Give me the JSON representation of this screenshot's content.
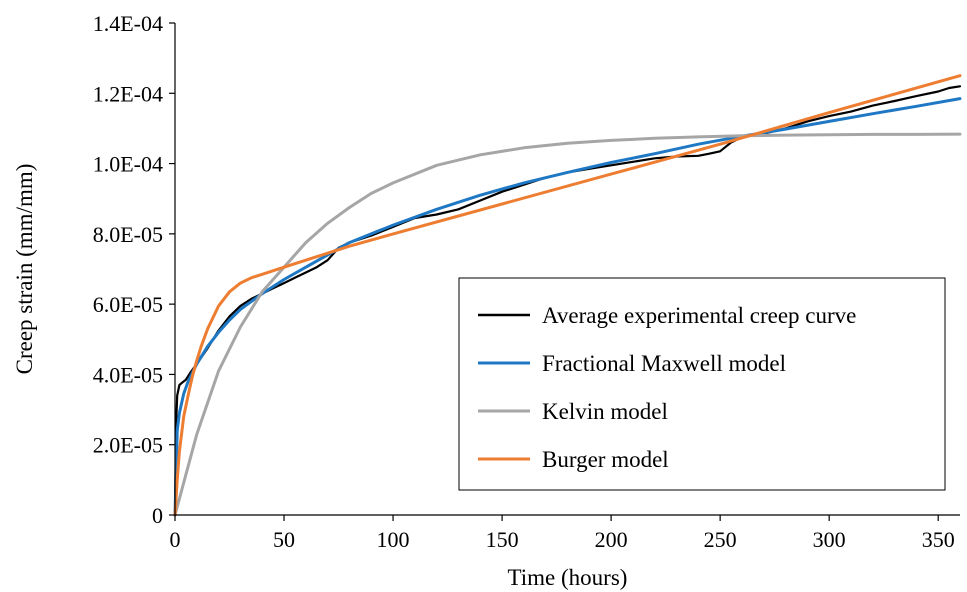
{
  "chart_data": {
    "type": "line",
    "title": "",
    "xlabel": "Time (hours)",
    "ylabel": "Creep strain (mm/mm)",
    "xlim": [
      0,
      360
    ],
    "ylim": [
      0,
      0.00014
    ],
    "x_ticks": [
      0,
      50,
      100,
      150,
      200,
      250,
      300,
      350
    ],
    "x_tick_labels": [
      "0",
      "50",
      "100",
      "150",
      "200",
      "250",
      "300",
      "350"
    ],
    "y_ticks": [
      0,
      2e-05,
      4e-05,
      6e-05,
      8e-05,
      0.0001,
      0.00012,
      0.00014
    ],
    "y_tick_labels": [
      "0",
      "2.0E-05",
      "4.0E-05",
      "6.0E-05",
      "8.0E-05",
      "1.0E-04",
      "1.2E-04",
      "1.4E-04"
    ],
    "grid": false,
    "legend_position": "bottom-right",
    "series": [
      {
        "name": "Average experimental creep curve",
        "color": "#000000",
        "x": [
          0,
          0.5,
          1,
          2,
          3,
          5,
          7,
          10,
          15,
          20,
          25,
          30,
          35,
          40,
          45,
          50,
          55,
          60,
          65,
          70,
          75,
          80,
          90,
          100,
          110,
          120,
          130,
          140,
          150,
          160,
          170,
          180,
          190,
          200,
          210,
          220,
          230,
          240,
          245,
          250,
          255,
          260,
          270,
          280,
          290,
          300,
          310,
          320,
          330,
          340,
          350,
          355,
          360
        ],
        "y": [
          0,
          2.6e-05,
          3.4e-05,
          3.7e-05,
          3.75e-05,
          3.85e-05,
          4.05e-05,
          4.3e-05,
          4.75e-05,
          5.25e-05,
          5.65e-05,
          5.95e-05,
          6.15e-05,
          6.3e-05,
          6.45e-05,
          6.6e-05,
          6.75e-05,
          6.9e-05,
          7.05e-05,
          7.25e-05,
          7.6e-05,
          7.75e-05,
          7.95e-05,
          8.2e-05,
          8.45e-05,
          8.55e-05,
          8.7e-05,
          8.95e-05,
          9.2e-05,
          9.4e-05,
          9.6e-05,
          9.75e-05,
          9.85e-05,
          9.95e-05,
          0.0001005,
          0.0001015,
          0.000102,
          0.0001022,
          0.0001028,
          0.0001035,
          0.000106,
          0.0001075,
          0.0001085,
          0.00011,
          0.000112,
          0.0001135,
          0.0001148,
          0.0001165,
          0.0001178,
          0.0001192,
          0.0001205,
          0.0001215,
          0.000122
        ]
      },
      {
        "name": "Fractional Maxwell model",
        "color": "#1f78c4",
        "x": [
          0,
          1,
          2,
          4,
          6,
          8,
          10,
          15,
          20,
          25,
          30,
          40,
          50,
          60,
          70,
          80,
          100,
          120,
          140,
          160,
          180,
          200,
          220,
          240,
          260,
          280,
          300,
          320,
          340,
          360
        ],
        "y": [
          0,
          2.4e-05,
          2.9e-05,
          3.45e-05,
          3.8e-05,
          4.05e-05,
          4.3e-05,
          4.8e-05,
          5.2e-05,
          5.55e-05,
          5.85e-05,
          6.3e-05,
          6.7e-05,
          7.05e-05,
          7.4e-05,
          7.75e-05,
          8.25e-05,
          8.7e-05,
          9.1e-05,
          9.45e-05,
          9.75e-05,
          0.0001003,
          0.0001028,
          0.0001055,
          0.0001078,
          0.0001098,
          0.000112,
          0.0001142,
          0.0001163,
          0.0001185
        ]
      },
      {
        "name": "Kelvin model",
        "color": "#a6a6a6",
        "x": [
          0,
          10,
          20,
          30,
          40,
          50,
          60,
          70,
          80,
          90,
          100,
          120,
          140,
          160,
          180,
          200,
          220,
          240,
          260,
          280,
          300,
          320,
          340,
          360
        ],
        "y": [
          0,
          2.3e-05,
          4.1e-05,
          5.35e-05,
          6.35e-05,
          7.05e-05,
          7.75e-05,
          8.3e-05,
          8.75e-05,
          9.15e-05,
          9.45e-05,
          9.95e-05,
          0.0001025,
          0.0001045,
          0.0001058,
          0.0001066,
          0.0001072,
          0.0001076,
          0.0001079,
          0.0001081,
          0.0001082,
          0.0001083,
          0.0001083,
          0.0001084
        ]
      },
      {
        "name": "Burger model",
        "color": "#ed7d31",
        "x": [
          0,
          1,
          2,
          4,
          6,
          8,
          10,
          12,
          15,
          20,
          25,
          30,
          35,
          40,
          50,
          60,
          70,
          80,
          100,
          150,
          200,
          250,
          300,
          360
        ],
        "y": [
          0,
          1e-05,
          1.8e-05,
          2.8e-05,
          3.4e-05,
          3.95e-05,
          4.4e-05,
          4.8e-05,
          5.3e-05,
          5.95e-05,
          6.35e-05,
          6.6e-05,
          6.75e-05,
          6.85e-05,
          7.05e-05,
          7.25e-05,
          7.45e-05,
          7.65e-05,
          8e-05,
          8.85e-05,
          9.7e-05,
          0.0001055,
          0.0001145,
          0.000125
        ]
      }
    ]
  }
}
